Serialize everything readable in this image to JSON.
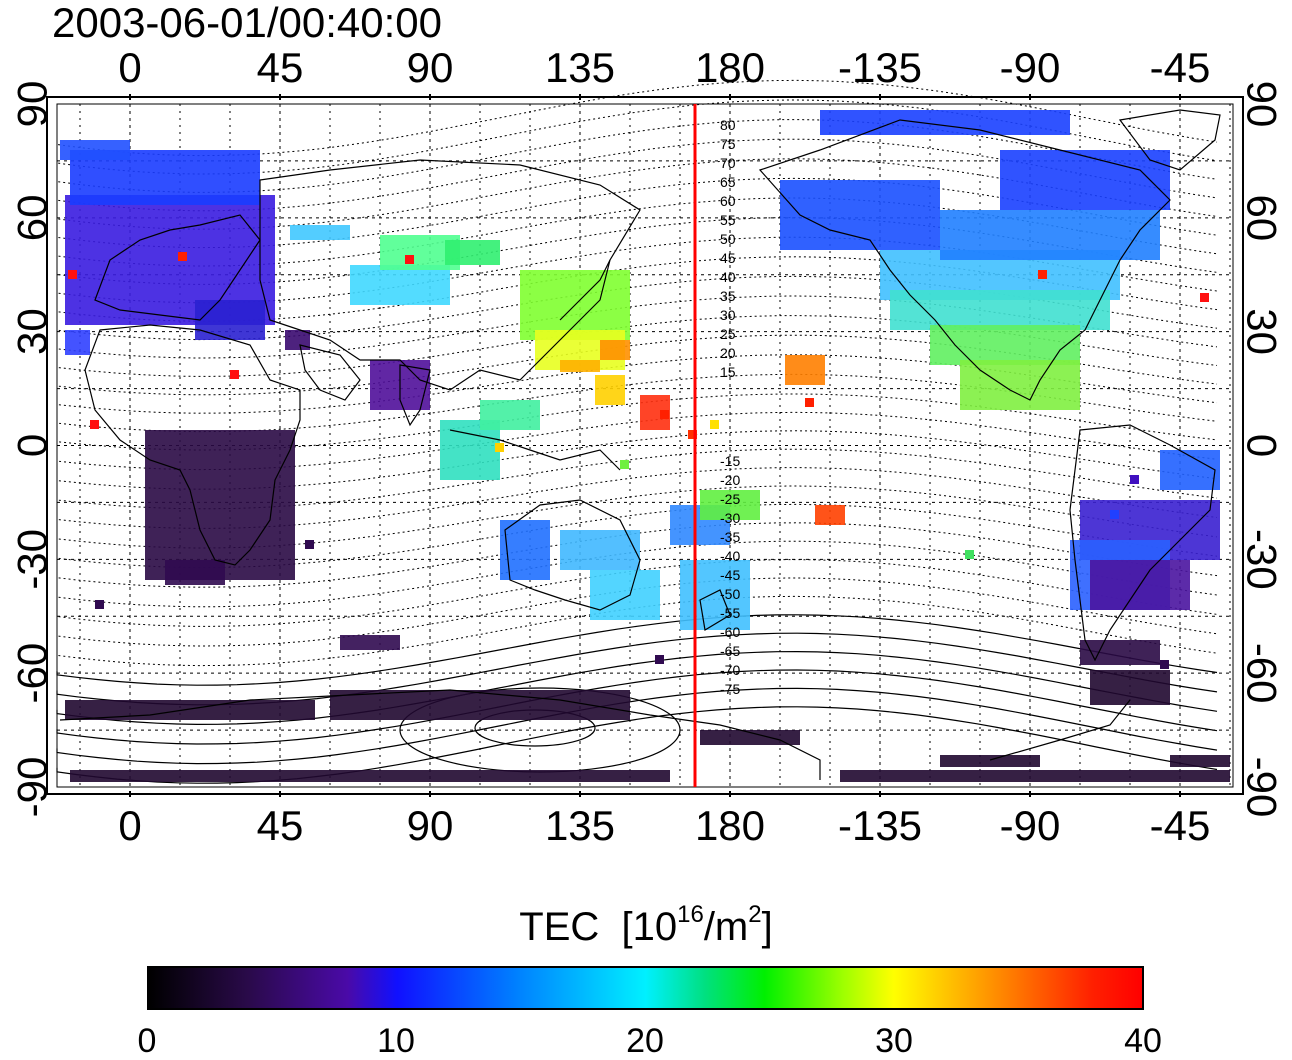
{
  "timestamp": "2003-06-01/00:40:00",
  "map": {
    "lon_ticks_top": [
      "0",
      "45",
      "90",
      "135",
      "180",
      "-135",
      "-90",
      "-45"
    ],
    "lon_ticks_bottom": [
      "0",
      "45",
      "90",
      "135",
      "180",
      "-135",
      "-90",
      "-45"
    ],
    "lat_ticks_left": [
      "90",
      "60",
      "30",
      "0",
      "-30",
      "-60",
      "-90"
    ],
    "lat_ticks_right": [
      "90",
      "60",
      "30",
      "0",
      "-30",
      "-60",
      "-90"
    ],
    "magnetic_latitude_labels_north": [
      "80",
      "75",
      "70",
      "65",
      "60",
      "55",
      "50",
      "45",
      "40",
      "35",
      "30",
      "25",
      "20",
      "15"
    ],
    "magnetic_latitude_labels_south": [
      "-15",
      "-20",
      "-25",
      "-30",
      "-35",
      "-40",
      "-45",
      "-50",
      "-55",
      "-60",
      "-65",
      "-70",
      "-75"
    ],
    "red_line_color": "#ff0000"
  },
  "colorbar": {
    "title": "TEC",
    "unit_base": "[10",
    "unit_exp": "16",
    "unit_mid": "/m",
    "unit_exp2": "2",
    "unit_end": "]",
    "ticks": [
      "0",
      "10",
      "20",
      "30",
      "40"
    ],
    "colors": [
      "#000000",
      "#2a0a4a",
      "#4a0aa8",
      "#1010ff",
      "#0080ff",
      "#00f0ff",
      "#00f000",
      "#ffff00",
      "#ff9000",
      "#ff0000"
    ]
  }
}
